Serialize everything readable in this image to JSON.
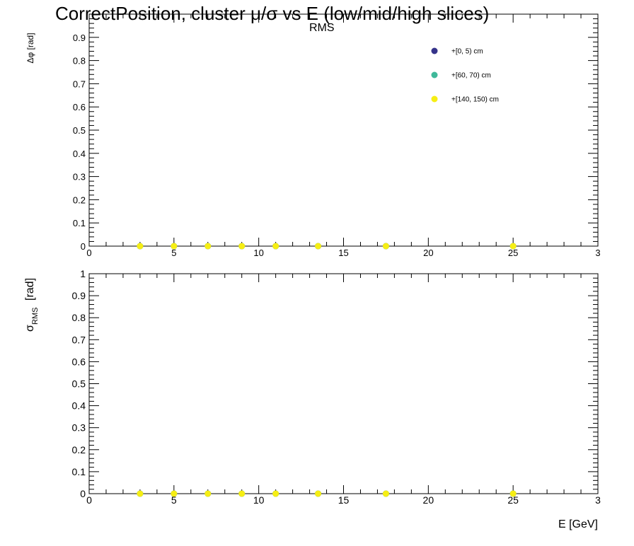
{
  "chart_data": {
    "title_main": "CorrectPosition, cluster   μ/σ       vs E  (low/mid/high slices)",
    "title_sub": "RMS",
    "legend": [
      {
        "label": "+[0, 5) cm",
        "color": "#35338a"
      },
      {
        "label": "+[60, 70) cm",
        "color": "#3fb99a"
      },
      {
        "label": "+[140, 150) cm",
        "color": "#f6ee14"
      }
    ],
    "panels": [
      {
        "type": "scatter",
        "ylabel": "Δφ  [rad]",
        "xlim": [
          0,
          30
        ],
        "ylim": [
          0,
          1
        ],
        "x_ticks": [
          "0",
          "5",
          "10",
          "15",
          "20",
          "25",
          "3"
        ],
        "y_ticks": [
          "0",
          "0.1",
          "0.2",
          "0.3",
          "0.4",
          "0.5",
          "0.6",
          "0.7",
          "0.8",
          "0.9"
        ],
        "series": [
          {
            "name": "+[0, 5) cm",
            "x": [
              3,
              5,
              7,
              9,
              11,
              13.5,
              17.5,
              25
            ],
            "y": [
              0,
              0,
              0,
              0,
              0,
              0,
              0,
              0
            ]
          },
          {
            "name": "+[60, 70) cm",
            "x": [
              3,
              5,
              7,
              9,
              11,
              13.5,
              17.5,
              25
            ],
            "y": [
              0,
              0,
              0,
              0,
              0,
              0,
              0,
              0
            ]
          },
          {
            "name": "+[140, 150) cm",
            "x": [
              3,
              5,
              7,
              9,
              11,
              13.5,
              17.5,
              25
            ],
            "y": [
              0,
              0,
              0,
              0,
              0,
              0,
              0,
              0
            ]
          }
        ]
      },
      {
        "type": "scatter",
        "ylabel": "σ",
        "ylabel_sub": "RMS",
        "ylabel_unit": "[rad]",
        "xlabel": "E  [GeV]",
        "xlim": [
          0,
          30
        ],
        "ylim": [
          0,
          1
        ],
        "x_ticks": [
          "0",
          "5",
          "10",
          "15",
          "20",
          "25",
          "3"
        ],
        "y_ticks": [
          "0",
          "0.1",
          "0.2",
          "0.3",
          "0.4",
          "0.5",
          "0.6",
          "0.7",
          "0.8",
          "0.9",
          "1"
        ],
        "series": [
          {
            "name": "+[0, 5) cm",
            "x": [
              3,
              5,
              7,
              9,
              11,
              13.5,
              17.5,
              25
            ],
            "y": [
              0,
              0,
              0,
              0,
              0,
              0,
              0,
              0
            ]
          },
          {
            "name": "+[60, 70) cm",
            "x": [
              3,
              5,
              7,
              9,
              11,
              13.5,
              17.5,
              25
            ],
            "y": [
              0,
              0,
              0,
              0,
              0,
              0,
              0,
              0
            ]
          },
          {
            "name": "+[140, 150) cm",
            "x": [
              3,
              5,
              7,
              9,
              11,
              13.5,
              17.5,
              25
            ],
            "y": [
              0,
              0,
              0,
              0,
              0,
              0,
              0,
              0
            ]
          }
        ]
      }
    ]
  }
}
